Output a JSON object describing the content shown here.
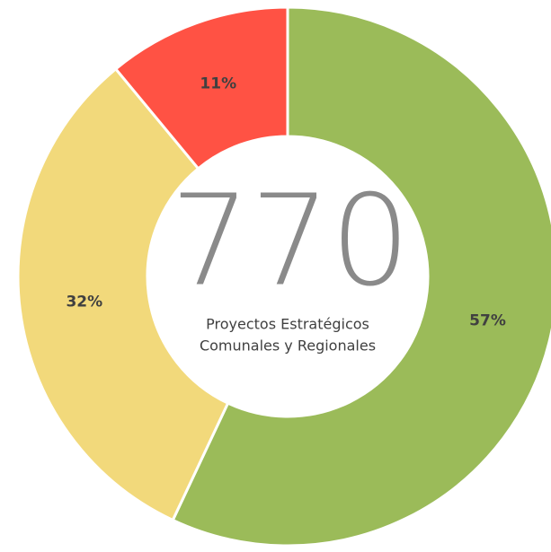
{
  "chart_data": {
    "type": "donut",
    "values": [
      57,
      32,
      11
    ],
    "value_labels": [
      "57%",
      "32%",
      "11%"
    ],
    "colors": [
      "#9bbb59",
      "#f2d97b",
      "#ff5244"
    ],
    "center_value": "770",
    "center_text": [
      "Proyectos Estratégicos",
      "Comunales y Regionales"
    ]
  }
}
